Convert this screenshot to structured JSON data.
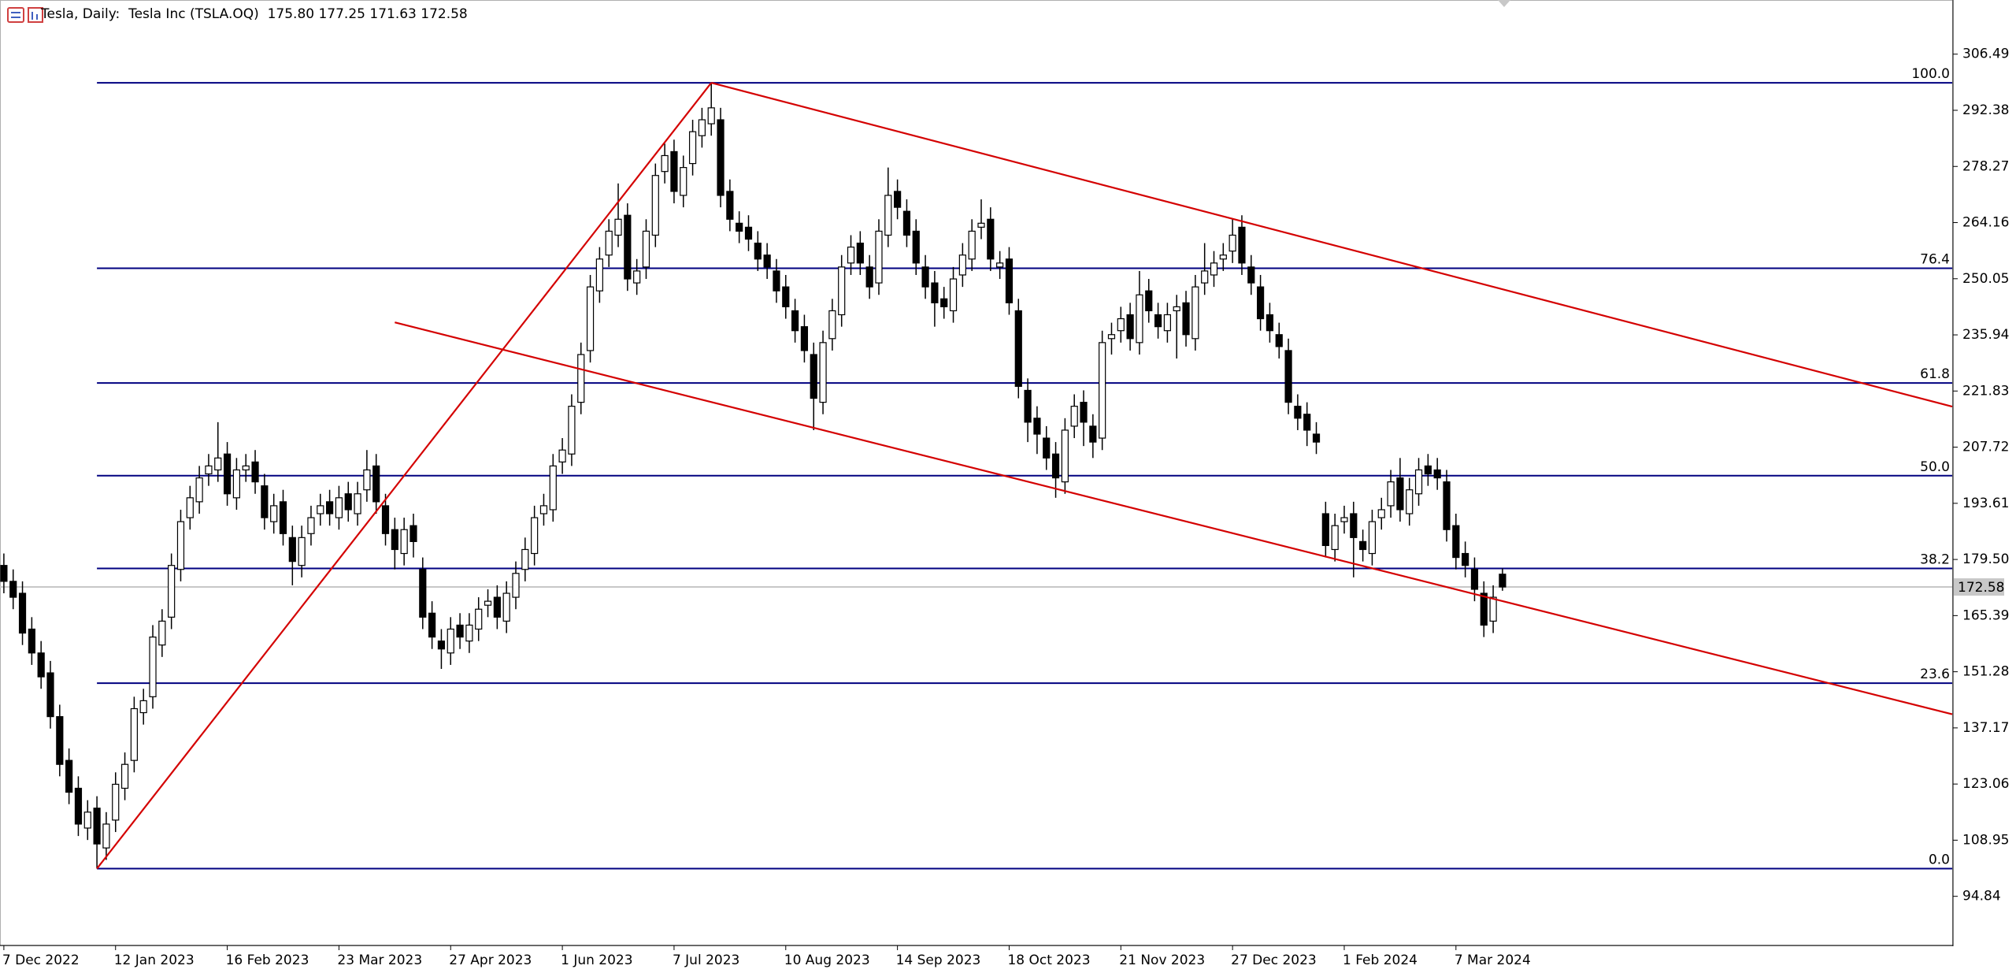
{
  "chart_data": {
    "type": "candlestick",
    "title": "Tesla, Daily:",
    "subtitle": "Tesla Inc (TSLA.OQ)",
    "last_labels": [
      "175.80",
      "177.25",
      "171.63",
      "172.58"
    ],
    "categories": [
      "7 Dec 2022",
      null,
      null,
      null,
      null,
      null,
      null,
      null,
      null,
      null,
      null,
      null,
      "12 Jan 2023",
      null,
      null,
      null,
      null,
      null,
      null,
      null,
      null,
      null,
      null,
      null,
      "16 Feb 2023",
      null,
      null,
      null,
      null,
      null,
      null,
      null,
      null,
      null,
      null,
      null,
      "23 Mar 2023",
      null,
      null,
      null,
      null,
      null,
      null,
      null,
      null,
      null,
      null,
      null,
      "27 Apr 2023",
      null,
      null,
      null,
      null,
      null,
      null,
      null,
      null,
      null,
      null,
      null,
      "1 Jun 2023",
      null,
      null,
      null,
      null,
      null,
      null,
      null,
      null,
      null,
      null,
      null,
      "7 Jul 2023",
      null,
      null,
      null,
      null,
      null,
      null,
      null,
      null,
      null,
      null,
      null,
      "10 Aug 2023",
      null,
      null,
      null,
      null,
      null,
      null,
      null,
      null,
      null,
      null,
      null,
      "14 Sep 2023",
      null,
      null,
      null,
      null,
      null,
      null,
      null,
      null,
      null,
      null,
      null,
      "18 Oct 2023",
      null,
      null,
      null,
      null,
      null,
      null,
      null,
      null,
      null,
      null,
      null,
      "21 Nov 2023",
      null,
      null,
      null,
      null,
      null,
      null,
      null,
      null,
      null,
      null,
      null,
      "27 Dec 2023",
      null,
      null,
      null,
      null,
      null,
      null,
      null,
      null,
      null,
      null,
      null,
      "1 Feb 2024",
      null,
      null,
      null,
      null,
      null,
      null,
      null,
      null,
      null,
      null,
      null,
      "7 Mar 2024",
      null,
      null,
      null,
      null,
      null
    ],
    "open": [
      178,
      174,
      171,
      162,
      156,
      151,
      140,
      129,
      122,
      112,
      117,
      107,
      114,
      122,
      129,
      141,
      145,
      158,
      165,
      177,
      190,
      194,
      201,
      202,
      206,
      195,
      202,
      204,
      198,
      189,
      194,
      185,
      178,
      186,
      191,
      194,
      190,
      196,
      191,
      197,
      203,
      193,
      187,
      181,
      188,
      177,
      166,
      159,
      156,
      163,
      159,
      162,
      168,
      170,
      164,
      170,
      177,
      181,
      191,
      192,
      204,
      206,
      219,
      232,
      247,
      256,
      261,
      266,
      249,
      253,
      261,
      277,
      282,
      271,
      279,
      286,
      289,
      290,
      272,
      264,
      263,
      259,
      256,
      252,
      248,
      242,
      238,
      231,
      219,
      235,
      241,
      254,
      259,
      253,
      249,
      261,
      272,
      267,
      262,
      253,
      249,
      245,
      242,
      251,
      255,
      263,
      265,
      253,
      255,
      242,
      222,
      215,
      210,
      206,
      199,
      213,
      219,
      213,
      210,
      235,
      237,
      241,
      234,
      247,
      241,
      237,
      242,
      244,
      235,
      249,
      251,
      255,
      257,
      263,
      253,
      248,
      241,
      236,
      232,
      218,
      216,
      211,
      191,
      182,
      189,
      191,
      184,
      181,
      190,
      193,
      200,
      191,
      196,
      203,
      202,
      199,
      188,
      181,
      177,
      171,
      164,
      175.8
    ],
    "high": [
      181,
      177,
      174,
      165,
      159,
      154,
      143,
      132,
      125,
      119,
      120,
      116,
      126,
      131,
      145,
      147,
      163,
      167,
      181,
      192,
      198,
      203,
      206,
      214,
      209,
      205,
      206,
      207,
      201,
      196,
      197,
      188,
      188,
      193,
      196,
      197,
      198,
      199,
      199,
      207,
      206,
      196,
      190,
      190,
      191,
      180,
      169,
      162,
      165,
      166,
      166,
      170,
      172,
      173,
      174,
      179,
      185,
      193,
      196,
      206,
      210,
      221,
      234,
      251,
      258,
      265,
      274,
      269,
      255,
      265,
      279,
      284,
      285,
      281,
      290,
      293,
      299.29,
      293,
      275,
      267,
      266,
      262,
      259,
      255,
      251,
      245,
      241,
      234,
      237,
      245,
      256,
      261,
      262,
      256,
      265,
      278,
      275,
      270,
      265,
      256,
      252,
      248,
      253,
      259,
      265,
      270,
      268,
      257,
      258,
      245,
      225,
      218,
      213,
      209,
      215,
      221,
      222,
      216,
      237,
      239,
      243,
      244,
      252,
      250,
      244,
      244,
      246,
      247,
      251,
      259,
      257,
      259,
      265,
      266,
      256,
      251,
      244,
      239,
      235,
      221,
      219,
      214,
      194,
      191,
      193,
      194,
      187,
      192,
      195,
      202,
      205,
      200,
      205,
      206,
      205,
      202,
      191,
      184,
      180,
      174,
      173,
      177.25
    ],
    "low": [
      171,
      167,
      158,
      153,
      147,
      137,
      125,
      118,
      110,
      109,
      101.81,
      104,
      111,
      119,
      126,
      138,
      142,
      155,
      162,
      174,
      187,
      191,
      198,
      199,
      193,
      192,
      199,
      196,
      187,
      186,
      183,
      173,
      175,
      183,
      188,
      188,
      187,
      189,
      188,
      194,
      191,
      183,
      177,
      178,
      180,
      162,
      157,
      152,
      153,
      157,
      156,
      159,
      165,
      162,
      161,
      167,
      174,
      178,
      188,
      189,
      201,
      203,
      216,
      229,
      244,
      253,
      258,
      247,
      246,
      250,
      258,
      274,
      269,
      268,
      276,
      283,
      286,
      268,
      262,
      259,
      257,
      252,
      250,
      244,
      240,
      234,
      229,
      212,
      216,
      232,
      238,
      251,
      251,
      245,
      246,
      258,
      265,
      258,
      251,
      245,
      238,
      240,
      239,
      248,
      252,
      260,
      252,
      250,
      241,
      220,
      209,
      206,
      202,
      195,
      196,
      210,
      208,
      205,
      207,
      231,
      234,
      232,
      231,
      239,
      235,
      234,
      230,
      233,
      232,
      246,
      248,
      252,
      254,
      251,
      246,
      237,
      234,
      230,
      216,
      212,
      208,
      206,
      180,
      179,
      186,
      175,
      179,
      178,
      187,
      190,
      189,
      188,
      193,
      198,
      197,
      184,
      177,
      175,
      169,
      160,
      161,
      171.63
    ],
    "close": [
      174,
      170,
      161,
      156,
      150,
      140,
      128,
      121,
      113,
      116,
      108,
      113,
      123,
      128,
      142,
      144,
      160,
      164,
      178,
      189,
      195,
      200,
      203,
      205,
      196,
      202,
      203,
      199,
      190,
      193,
      186,
      179,
      185,
      190,
      193,
      191,
      195,
      192,
      196,
      202,
      194,
      186,
      182,
      187,
      184,
      165,
      160,
      157,
      162,
      160,
      163,
      167,
      169,
      165,
      171,
      176,
      182,
      190,
      193,
      203,
      207,
      218,
      231,
      248,
      255,
      262,
      265,
      250,
      252,
      262,
      276,
      281,
      272,
      278,
      287,
      290,
      293,
      271,
      265,
      262,
      260,
      255,
      253,
      247,
      243,
      237,
      232,
      220,
      234,
      242,
      253,
      258,
      254,
      248,
      262,
      271,
      268,
      261,
      254,
      248,
      244,
      243,
      250,
      256,
      262,
      264,
      255,
      254,
      244,
      223,
      214,
      211,
      205,
      200,
      212,
      218,
      214,
      209,
      234,
      236,
      240,
      235,
      246,
      242,
      238,
      241,
      243,
      236,
      248,
      252,
      254,
      256,
      261,
      254,
      249,
      240,
      237,
      233,
      219,
      215,
      212,
      209,
      183,
      188,
      190,
      185,
      182,
      189,
      192,
      199,
      192,
      197,
      202,
      201,
      200,
      187,
      180,
      178,
      172,
      163,
      170,
      172.58
    ],
    "up_color": "#ffffff",
    "down_color": "#000000",
    "ylim": [
      82.5,
      320.1
    ],
    "yticks": [
      306.49,
      292.38,
      278.27,
      264.16,
      250.05,
      235.94,
      221.83,
      207.72,
      193.61,
      {
        "value": 179.5,
        "label": "179.50"
      },
      165.39,
      151.28,
      137.17,
      123.06,
      108.95,
      94.84
    ],
    "fib_color": "#000080",
    "fib_levels": [
      {
        "value": 299.29,
        "label": "100.0"
      },
      {
        "value": 252.68,
        "label": "76.4"
      },
      {
        "value": 223.85,
        "label": "61.8"
      },
      {
        "value": 200.55,
        "label": "50.0"
      },
      {
        "value": 177.25,
        "label": "38.2"
      },
      {
        "value": 148.42,
        "label": "23.6"
      },
      {
        "value": 101.81,
        "label": "0.0"
      }
    ],
    "trend_lines": [
      {
        "color": "#d40000",
        "ray": false,
        "points": [
          [
            10,
            101.81
          ],
          [
            76,
            299.29
          ]
        ]
      },
      {
        "color": "#d40000",
        "ray": true,
        "points": [
          [
            76,
            299.29
          ],
          [
            133,
            264.5
          ]
        ]
      },
      {
        "color": "#d40000",
        "ray": true,
        "points": [
          [
            42,
            239.07
          ],
          [
            158,
            170.8
          ]
        ]
      }
    ],
    "price_line_color": "#c8c8c8"
  }
}
